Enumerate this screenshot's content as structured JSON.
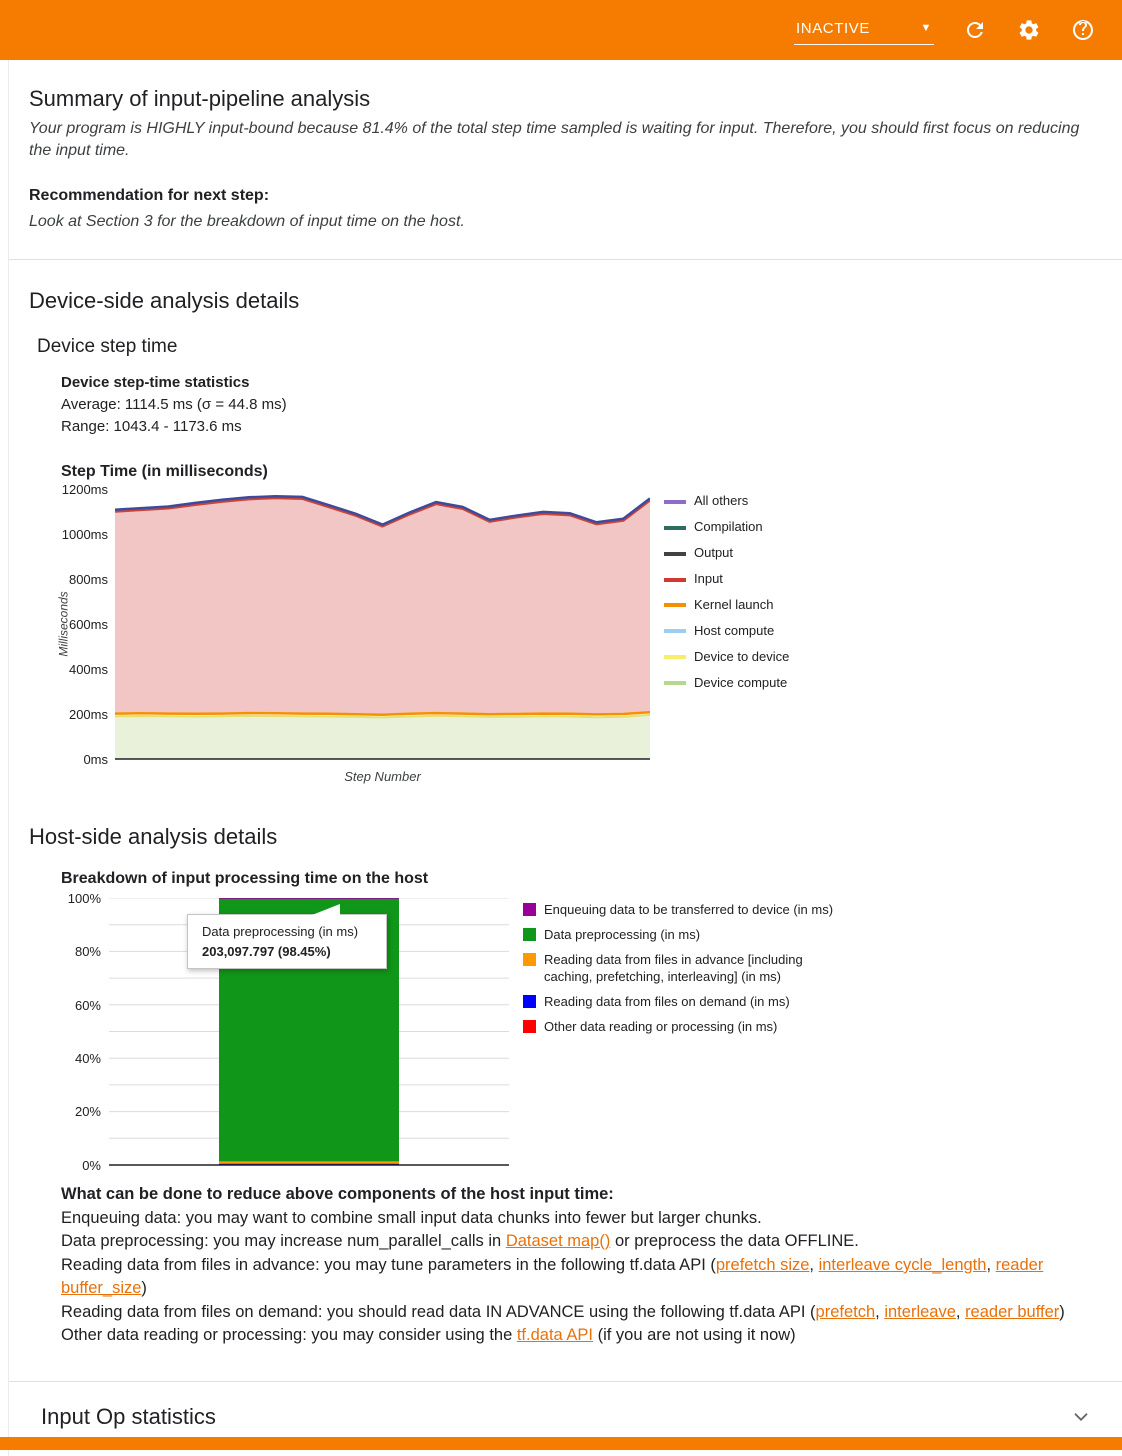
{
  "header": {
    "status": "INACTIVE"
  },
  "summary": {
    "title": "Summary of input-pipeline analysis",
    "body": "Your program is HIGHLY input-bound because 81.4% of the total step time sampled is waiting for input. Therefore, you should first focus on reducing the input time.",
    "rec_label": "Recommendation for next step:",
    "rec_body": "Look at Section 3 for the breakdown of input time on the host."
  },
  "device": {
    "title": "Device-side analysis details",
    "subtitle": "Device step time",
    "stats_heading": "Device step-time statistics",
    "stats_avg": "Average: 1114.5 ms (σ = 44.8 ms)",
    "stats_range": "Range: 1043.4 - 1173.6 ms"
  },
  "host": {
    "title": "Host-side analysis details"
  },
  "chart_data": [
    {
      "id": "device_step_time",
      "type": "area",
      "title": "Step Time (in milliseconds)",
      "ylabel": "Milliseconds",
      "xlabel": "Step Number",
      "ylim": [
        0,
        1200
      ],
      "yticks": [
        "1200ms",
        "1000ms",
        "800ms",
        "600ms",
        "400ms",
        "200ms",
        "0ms"
      ],
      "series": {
        "total": [
          1108,
          1115,
          1122,
          1138,
          1152,
          1163,
          1168,
          1165,
          1128,
          1090,
          1042,
          1095,
          1142,
          1120,
          1063,
          1082,
          1098,
          1092,
          1052,
          1068,
          1158
        ],
        "device_compute": [
          190,
          191,
          190,
          189,
          190,
          192,
          191,
          190,
          189,
          187,
          185,
          189,
          192,
          190,
          187,
          188,
          190,
          189,
          186,
          188,
          196
        ]
      },
      "kernel_offset": 12,
      "all_others_gap": 8,
      "colors": {
        "input_fill": "#f2c6c4",
        "input_line": "#cc4437",
        "others_line": "#3e4a9c",
        "kernel_line": "#f59100",
        "device_fill": "#e9f1db",
        "device_line": "#e6e06b",
        "axis": "#202124"
      },
      "legend": [
        {
          "label": "All others",
          "color": "#8e6cc9"
        },
        {
          "label": "Compilation",
          "color": "#2f6b5e"
        },
        {
          "label": "Output",
          "color": "#424242"
        },
        {
          "label": "Input",
          "color": "#d03a2f"
        },
        {
          "label": "Kernel launch",
          "color": "#f59100"
        },
        {
          "label": "Host compute",
          "color": "#9ecdf2"
        },
        {
          "label": "Device to device",
          "color": "#f7ef6a"
        },
        {
          "label": "Device compute",
          "color": "#b5d98a"
        }
      ]
    },
    {
      "id": "host_breakdown",
      "type": "bar",
      "title": "Breakdown of input processing time on the host",
      "ylim": [
        0,
        100
      ],
      "yticks": [
        "100%",
        "80%",
        "60%",
        "40%",
        "20%",
        "0%"
      ],
      "gridline_step": 10,
      "bar_segments_bottom_up": [
        {
          "label": "Other data reading or processing (in ms)",
          "value": 0.45,
          "color": "#ff0000"
        },
        {
          "label": "Reading data from files on demand (in ms)",
          "value": 0.05,
          "color": "#0000ff"
        },
        {
          "label": "Reading data from files in advance [including caching, prefetching, interleaving] (in ms)",
          "value": 0.85,
          "color": "#ff9900"
        },
        {
          "label": "Data preprocessing (in ms)",
          "value": 98.45,
          "color": "#109618"
        },
        {
          "label": "Enqueuing data to be transferred to device (in ms)",
          "value": 0.2,
          "color": "#990099"
        }
      ],
      "tooltip": {
        "title": "Data preprocessing (in ms)",
        "value": "203,097.797 (98.45%)"
      },
      "legend": [
        {
          "label": "Enqueuing data to be transferred to device (in ms)",
          "color": "#990099"
        },
        {
          "label": "Data preprocessing (in ms)",
          "color": "#109618"
        },
        {
          "label": "Reading data from files in advance [including caching, prefetching, interleaving] (in ms)",
          "color": "#ff9900"
        },
        {
          "label": "Reading data from files on demand (in ms)",
          "color": "#0000ff"
        },
        {
          "label": "Other data reading or processing (in ms)",
          "color": "#ff0000"
        }
      ],
      "colors": {
        "axis": "#202124",
        "grid": "#dadce0"
      }
    }
  ],
  "recommendations": {
    "heading": "What can be done to reduce above components of the host input time:",
    "lines": [
      [
        {
          "t": "Enqueuing data: you may want to combine small input data chunks into fewer but larger chunks."
        }
      ],
      [
        {
          "t": "Data preprocessing: you may increase num_parallel_calls in "
        },
        {
          "t": "Dataset map()",
          "link": true
        },
        {
          "t": " or preprocess the data OFFLINE."
        }
      ],
      [
        {
          "t": "Reading data from files in advance: you may tune parameters in the following tf.data API ("
        },
        {
          "t": "prefetch size",
          "link": true
        },
        {
          "t": ", "
        },
        {
          "t": "interleave cycle_length",
          "link": true
        },
        {
          "t": ", "
        },
        {
          "t": "reader buffer_size",
          "link": true
        },
        {
          "t": ")"
        }
      ],
      [
        {
          "t": "Reading data from files on demand: you should read data IN ADVANCE using the following tf.data API ("
        },
        {
          "t": "prefetch",
          "link": true
        },
        {
          "t": ", "
        },
        {
          "t": "interleave",
          "link": true
        },
        {
          "t": ", "
        },
        {
          "t": "reader buffer",
          "link": true
        },
        {
          "t": ")"
        }
      ],
      [
        {
          "t": "Other data reading or processing: you may consider using the "
        },
        {
          "t": "tf.data API",
          "link": true
        },
        {
          "t": " (if you are not using it now)"
        }
      ]
    ]
  },
  "input_op": {
    "title": "Input Op statistics"
  }
}
